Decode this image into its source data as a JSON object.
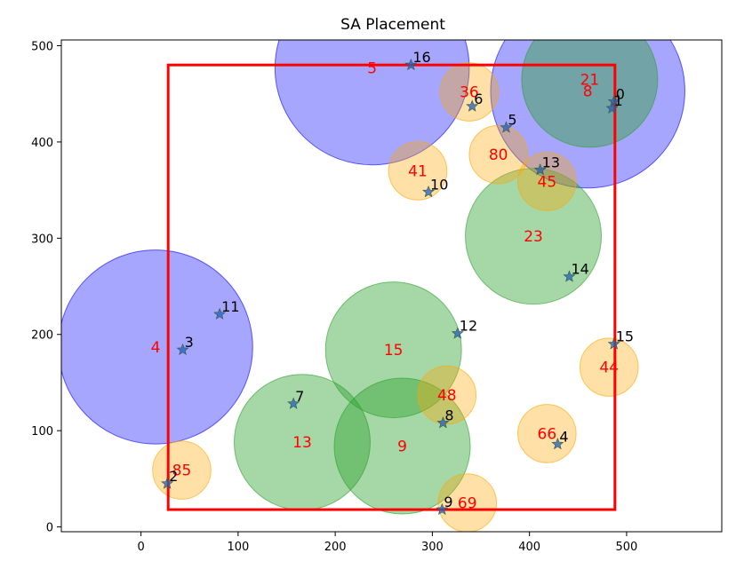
{
  "chart_data": {
    "type": "scatter",
    "title": "SA Placement",
    "xlabel": "",
    "ylabel": "",
    "xlim": [
      -82,
      598
    ],
    "ylim": [
      -5,
      506
    ],
    "xticks": [
      0,
      100,
      200,
      300,
      400,
      500
    ],
    "yticks": [
      0,
      100,
      200,
      300,
      400,
      500
    ],
    "grid": false,
    "legend": "none",
    "colors": {
      "blue_fill": "#0000ff",
      "green_fill": "#2ca02c",
      "orange_fill": "#ffa500",
      "region": "#ff0000",
      "circle_label": "#ff0000",
      "point_label": "#000000"
    },
    "region_rect": {
      "x0": 28,
      "y0": 18,
      "x1": 488,
      "y1": 480
    },
    "circles": [
      {
        "label": "4",
        "cx": 15,
        "cy": 187,
        "r": 100,
        "color": "blue"
      },
      {
        "label": "5",
        "cx": 238,
        "cy": 477,
        "r": 100,
        "color": "blue"
      },
      {
        "label": "8",
        "cx": 460,
        "cy": 453,
        "r": 100,
        "color": "blue"
      },
      {
        "label": "21",
        "cx": 462,
        "cy": 465,
        "r": 70,
        "color": "green"
      },
      {
        "label": "23",
        "cx": 404,
        "cy": 302,
        "r": 70,
        "color": "green"
      },
      {
        "label": "15",
        "cx": 260,
        "cy": 184,
        "r": 70,
        "color": "green"
      },
      {
        "label": "13",
        "cx": 166,
        "cy": 88,
        "r": 70,
        "color": "green"
      },
      {
        "label": "9",
        "cx": 269,
        "cy": 84,
        "r": 70,
        "color": "green"
      },
      {
        "label": "36",
        "cx": 338,
        "cy": 452,
        "r": 30,
        "color": "orange"
      },
      {
        "label": "80",
        "cx": 368,
        "cy": 387,
        "r": 30,
        "color": "orange"
      },
      {
        "label": "41",
        "cx": 285,
        "cy": 370,
        "r": 30,
        "color": "orange"
      },
      {
        "label": "45",
        "cx": 418,
        "cy": 359,
        "r": 30,
        "color": "orange"
      },
      {
        "label": "44",
        "cx": 482,
        "cy": 166,
        "r": 30,
        "color": "orange"
      },
      {
        "label": "48",
        "cx": 315,
        "cy": 137,
        "r": 30,
        "color": "orange"
      },
      {
        "label": "66",
        "cx": 418,
        "cy": 97,
        "r": 30,
        "color": "orange"
      },
      {
        "label": "85",
        "cx": 42,
        "cy": 59,
        "r": 30,
        "color": "orange"
      },
      {
        "label": "69",
        "cx": 336,
        "cy": 25,
        "r": 30,
        "color": "orange"
      }
    ],
    "points": [
      {
        "label": "0",
        "x": 487,
        "y": 442
      },
      {
        "label": "1",
        "x": 485,
        "y": 435
      },
      {
        "label": "2",
        "x": 27,
        "y": 45
      },
      {
        "label": "3",
        "x": 43,
        "y": 184
      },
      {
        "label": "4",
        "x": 429,
        "y": 86
      },
      {
        "label": "5",
        "x": 376,
        "y": 415
      },
      {
        "label": "6",
        "x": 341,
        "y": 437
      },
      {
        "label": "7",
        "x": 157,
        "y": 128
      },
      {
        "label": "8",
        "x": 311,
        "y": 108
      },
      {
        "label": "9",
        "x": 310,
        "y": 18
      },
      {
        "label": "10",
        "x": 296,
        "y": 348
      },
      {
        "label": "11",
        "x": 81,
        "y": 221
      },
      {
        "label": "12",
        "x": 326,
        "y": 201
      },
      {
        "label": "13",
        "x": 411,
        "y": 371
      },
      {
        "label": "14",
        "x": 441,
        "y": 260
      },
      {
        "label": "15",
        "x": 487,
        "y": 190
      },
      {
        "label": "16",
        "x": 278,
        "y": 480
      }
    ]
  }
}
